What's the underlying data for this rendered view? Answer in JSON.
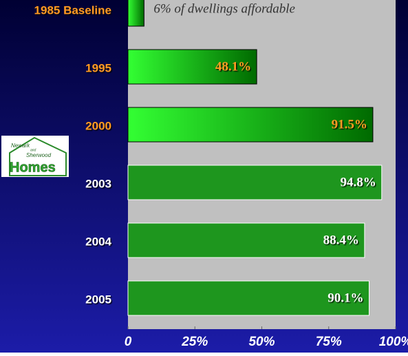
{
  "chart_data": {
    "type": "barh",
    "categories": [
      "1985 Baseline",
      "1995",
      "2000",
      "2003",
      "2004",
      "2005"
    ],
    "values": [
      6,
      48.1,
      91.5,
      94.8,
      88.4,
      90.1
    ],
    "value_labels": [
      "6% of dwellings affordable",
      "48.1%",
      "91.5%",
      "94.8%",
      "88.4%",
      "90.1%"
    ],
    "colors": [
      "#22ff22",
      "#22ff22",
      "#22ff22",
      "#1e961e",
      "#1e961e",
      "#1e961e"
    ],
    "gradient": [
      true,
      true,
      true,
      false,
      false,
      false
    ],
    "category_label_colors": [
      "#ff9922",
      "#ff9922",
      "#ff9922",
      "#ffffff",
      "#ffffff",
      "#ffffff"
    ],
    "value_label_colors": [
      "#333333",
      "#ff9922",
      "#ff9922",
      "#ffffff",
      "#ffffff",
      "#ffffff"
    ],
    "xlim": [
      0,
      100
    ],
    "xticks": [
      0,
      {
        "value": 25,
        "label": "25%"
      },
      {
        "value": 50,
        "label": "50%"
      },
      {
        "value": 75,
        "label": "75%"
      },
      {
        "value": 100,
        "label": "100%"
      }
    ]
  },
  "logo": {
    "line1": "Newark",
    "line2": "and",
    "line3": "Sherwood",
    "line4": "Homes"
  }
}
